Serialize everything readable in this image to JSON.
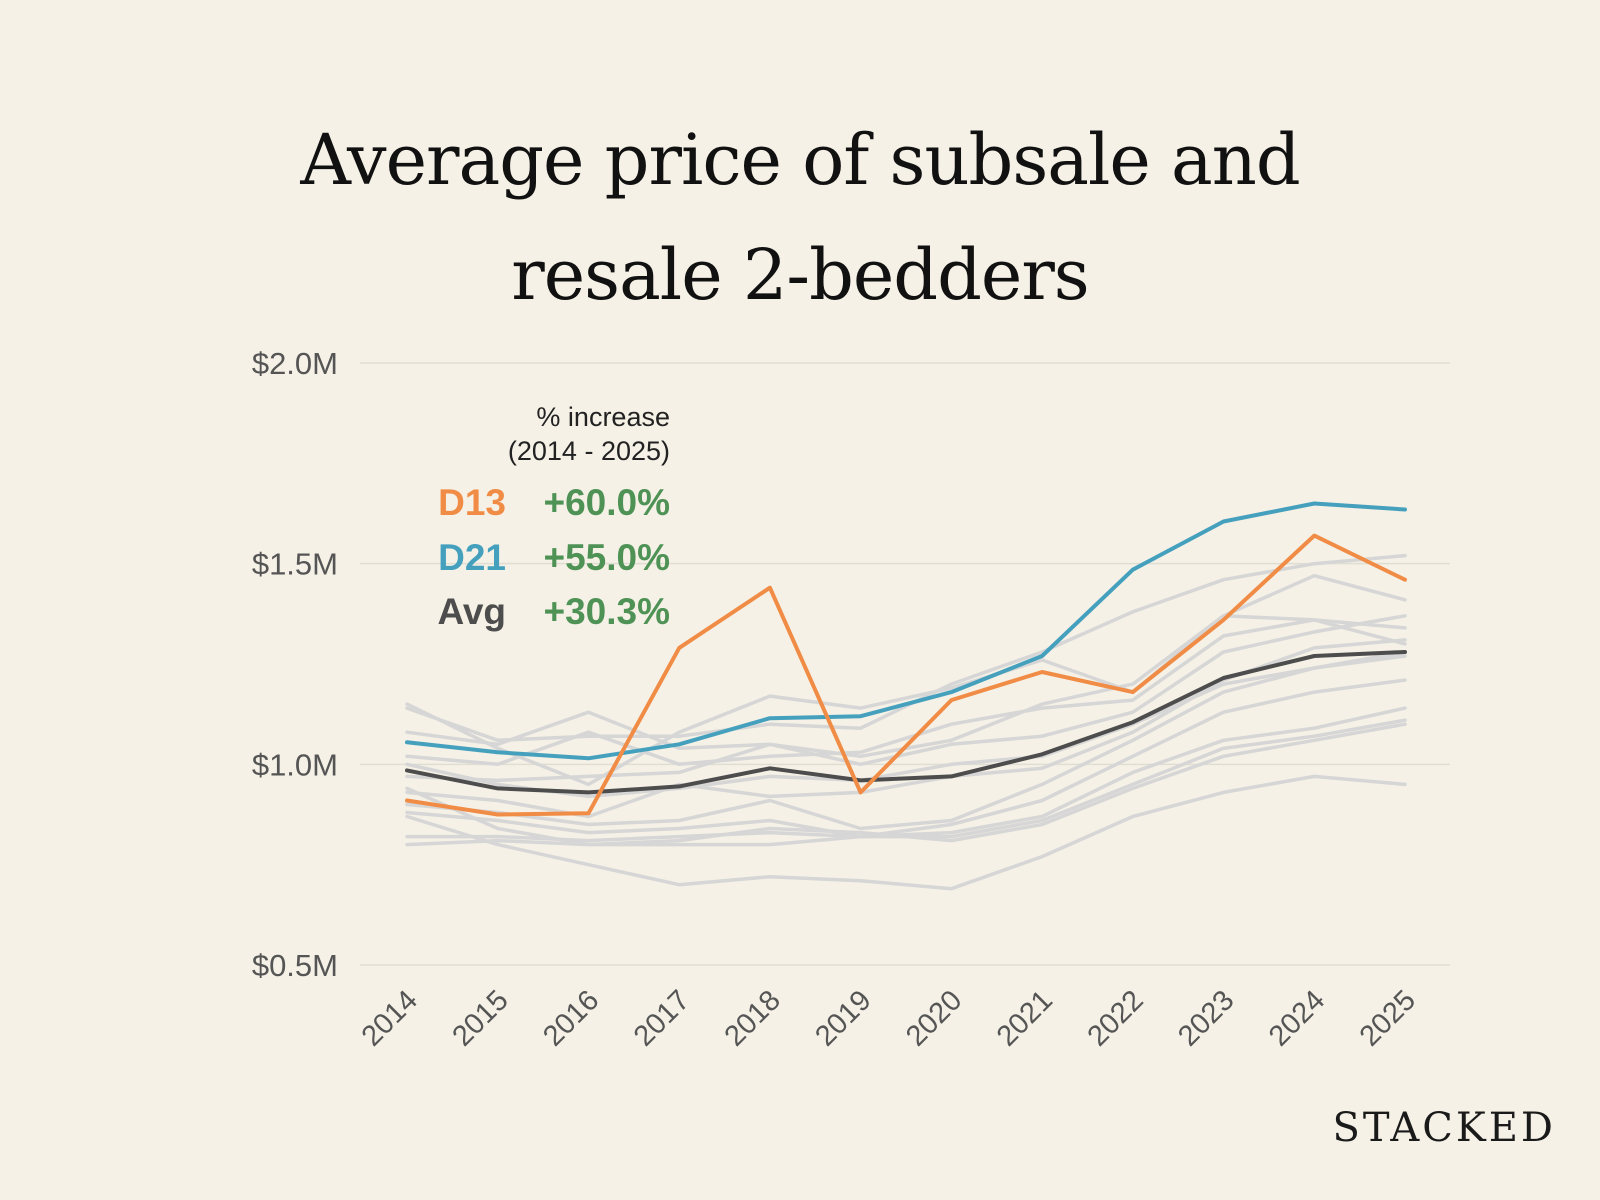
{
  "title_line1": "Average price of subsale and",
  "title_line2": "resale 2-bedders",
  "brand": "STACKED",
  "colors": {
    "background": "#f5f1e6",
    "d13": "#f08c45",
    "d21": "#45a0be",
    "avg": "#4d4d4d",
    "other": "#d6d6d6",
    "increase": "#4f9256",
    "grid": "#e0ddd3",
    "tick": "#555555"
  },
  "chart_data": {
    "type": "line",
    "title": "Average price of subsale and resale 2-bedders",
    "xlabel": "",
    "ylabel": "",
    "ylim": [
      0.5,
      2.0
    ],
    "grid": true,
    "y_ticks": [
      {
        "value": 2.0,
        "label": "$2.0M"
      },
      {
        "value": 1.5,
        "label": "$1.5M"
      },
      {
        "value": 1.0,
        "label": "$1.0M"
      },
      {
        "value": 0.5,
        "label": "$0.5M"
      }
    ],
    "x": [
      "2014",
      "2015",
      "2016",
      "2017",
      "2018",
      "2019",
      "2020",
      "2021",
      "2022",
      "2023",
      "2024",
      "2025"
    ],
    "legend": {
      "heading_line1": "% increase",
      "heading_line2": "(2014 - 2025)",
      "entries": [
        {
          "label": "D13",
          "value": "+60.0%",
          "series": "D13"
        },
        {
          "label": "D21",
          "value": "+55.0%",
          "series": "D21"
        },
        {
          "label": "Avg",
          "value": "+30.3%",
          "series": "Avg"
        }
      ]
    },
    "series": [
      {
        "name": "D13",
        "role": "d13",
        "values": [
          0.91,
          0.875,
          0.878,
          1.29,
          1.44,
          0.93,
          1.16,
          1.23,
          1.18,
          1.36,
          1.57,
          1.46
        ]
      },
      {
        "name": "D21",
        "role": "d21",
        "values": [
          1.055,
          1.03,
          1.015,
          1.05,
          1.115,
          1.12,
          1.18,
          1.27,
          1.485,
          1.605,
          1.65,
          1.635
        ]
      },
      {
        "name": "Avg",
        "role": "avg",
        "values": [
          0.985,
          0.94,
          0.93,
          0.945,
          0.99,
          0.96,
          0.97,
          1.025,
          1.105,
          1.215,
          1.27,
          1.28
        ]
      },
      {
        "name": "Other 1",
        "role": "other",
        "values": [
          1.14,
          1.06,
          1.07,
          1.07,
          1.1,
          1.09,
          1.2,
          1.28,
          1.38,
          1.46,
          1.5,
          1.52
        ]
      },
      {
        "name": "Other 2",
        "role": "other",
        "values": [
          1.15,
          1.04,
          0.95,
          1.08,
          1.17,
          1.14,
          1.19,
          1.26,
          1.18,
          1.37,
          1.47,
          1.41
        ]
      },
      {
        "name": "Other 3",
        "role": "other",
        "values": [
          1.08,
          1.05,
          1.13,
          1.04,
          1.05,
          1.02,
          1.06,
          1.15,
          1.2,
          1.37,
          1.36,
          1.3
        ]
      },
      {
        "name": "Other 4",
        "role": "other",
        "values": [
          1.02,
          1.0,
          1.08,
          1.0,
          1.02,
          1.03,
          1.1,
          1.14,
          1.16,
          1.32,
          1.36,
          1.34
        ]
      },
      {
        "name": "Other 5",
        "role": "other",
        "values": [
          0.97,
          0.96,
          0.97,
          0.98,
          1.05,
          1.0,
          1.05,
          1.07,
          1.13,
          1.28,
          1.33,
          1.37
        ]
      },
      {
        "name": "Other 6",
        "role": "other",
        "values": [
          0.93,
          0.91,
          0.87,
          0.95,
          0.92,
          0.93,
          0.97,
          0.99,
          1.08,
          1.21,
          1.29,
          1.31
        ]
      },
      {
        "name": "Other 7",
        "role": "other",
        "values": [
          0.9,
          0.88,
          0.85,
          0.86,
          0.91,
          0.84,
          0.86,
          0.95,
          1.06,
          1.18,
          1.24,
          1.27
        ]
      },
      {
        "name": "Other 8",
        "role": "other",
        "values": [
          0.88,
          0.86,
          0.83,
          0.84,
          0.86,
          0.82,
          0.85,
          0.91,
          1.02,
          1.13,
          1.18,
          1.21
        ]
      },
      {
        "name": "Other 9",
        "role": "other",
        "values": [
          0.82,
          0.82,
          0.81,
          0.82,
          0.83,
          0.82,
          0.83,
          0.87,
          0.98,
          1.06,
          1.09,
          1.14
        ]
      },
      {
        "name": "Other 10",
        "role": "other",
        "values": [
          0.8,
          0.81,
          0.8,
          0.8,
          0.8,
          0.82,
          0.82,
          0.86,
          0.95,
          1.04,
          1.07,
          1.11
        ]
      },
      {
        "name": "Other 11",
        "role": "other",
        "values": [
          0.94,
          0.84,
          0.8,
          0.81,
          0.84,
          0.83,
          0.81,
          0.85,
          0.94,
          1.02,
          1.06,
          1.1
        ]
      },
      {
        "name": "Other 12",
        "role": "other",
        "values": [
          0.87,
          0.8,
          0.75,
          0.7,
          0.72,
          0.71,
          0.69,
          0.77,
          0.87,
          0.93,
          0.97,
          0.95
        ]
      },
      {
        "name": "Other 13",
        "role": "other",
        "values": [
          1.0,
          0.95,
          0.92,
          0.94,
          0.97,
          0.96,
          1.0,
          1.02,
          1.1,
          1.2,
          1.24,
          1.28
        ]
      }
    ]
  }
}
